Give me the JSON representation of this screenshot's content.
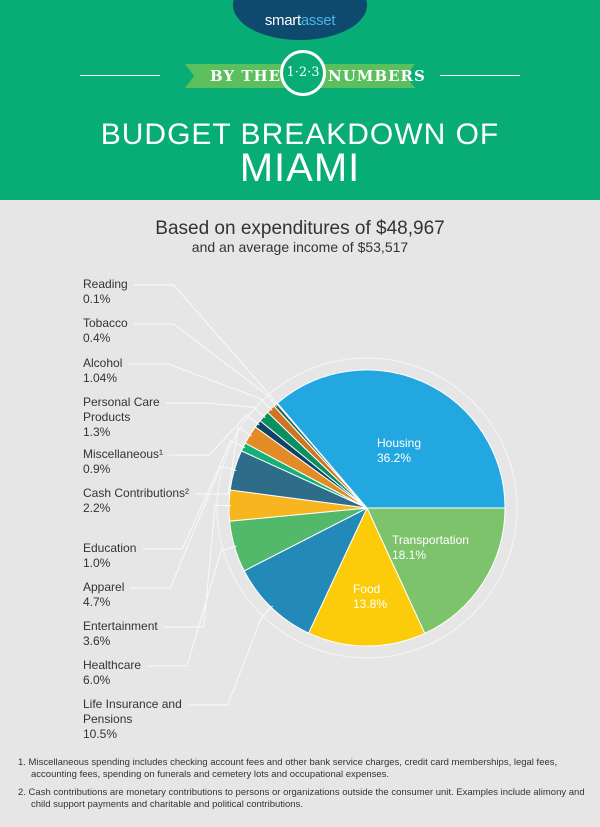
{
  "brand": {
    "logo_smart": "smart",
    "logo_asset": "asset"
  },
  "banner": {
    "left": "BY THE",
    "badge": "1·2·3",
    "right": "NUMBERS"
  },
  "title": {
    "line1": "BUDGET BREAKDOWN OF",
    "line2": "MIAMI"
  },
  "subtitle": {
    "line1": "Based on expenditures of $48,967",
    "line2": "and an average income of $53,517"
  },
  "chart_data": {
    "type": "pie",
    "start": "3 o'clock, clockwise",
    "slices": [
      {
        "label": "Transportation",
        "value": 18.1,
        "display": "18.1%",
        "color": "#7dc36b",
        "inside": true
      },
      {
        "label": "Food",
        "value": 13.8,
        "display": "13.8%",
        "color": "#fccc0a",
        "inside": true
      },
      {
        "label": "Life Insurance and Pensions",
        "value": 10.5,
        "display": "10.5%",
        "color": "#2389b8"
      },
      {
        "label": "Healthcare",
        "value": 6.0,
        "display": "6.0%",
        "color": "#52b96b"
      },
      {
        "label": "Entertainment",
        "value": 3.6,
        "display": "3.6%",
        "color": "#f7b520"
      },
      {
        "label": "Apparel",
        "value": 4.7,
        "display": "4.7%",
        "color": "#2e6d8a"
      },
      {
        "label": "Education",
        "value": 1.0,
        "display": "1.0%",
        "color": "#14b07a"
      },
      {
        "label": "Cash Contributions²",
        "value": 2.2,
        "display": "2.2%",
        "color": "#e38b25"
      },
      {
        "label": "Miscellaneous¹",
        "value": 0.9,
        "display": "0.9%",
        "color": "#0e4466"
      },
      {
        "label": "Personal Care Products",
        "value": 1.3,
        "display": "1.3%",
        "color": "#0a8f5e"
      },
      {
        "label": "Alcohol",
        "value": 1.04,
        "display": "1.04%",
        "color": "#d07422"
      },
      {
        "label": "Tobacco",
        "value": 0.4,
        "display": "0.4%",
        "color": "#1a6c5a"
      },
      {
        "label": "Reading",
        "value": 0.1,
        "display": "0.1%",
        "color": "#0f4b55"
      },
      {
        "label": "Housing",
        "value": 36.2,
        "display": "36.2%",
        "color": "#22a7e0",
        "inside": true
      }
    ]
  },
  "notes": [
    "1.  Miscellaneous spending includes checking account fees and other bank service charges, credit card memberships, legal fees, accounting fees, spending on funerals and cemetery lots and occupational expenses.",
    "2. Cash contributions are monetary contributions to persons or organizations outside the consumer unit. Examples include alimony and child support payments and charitable and political contributions."
  ]
}
